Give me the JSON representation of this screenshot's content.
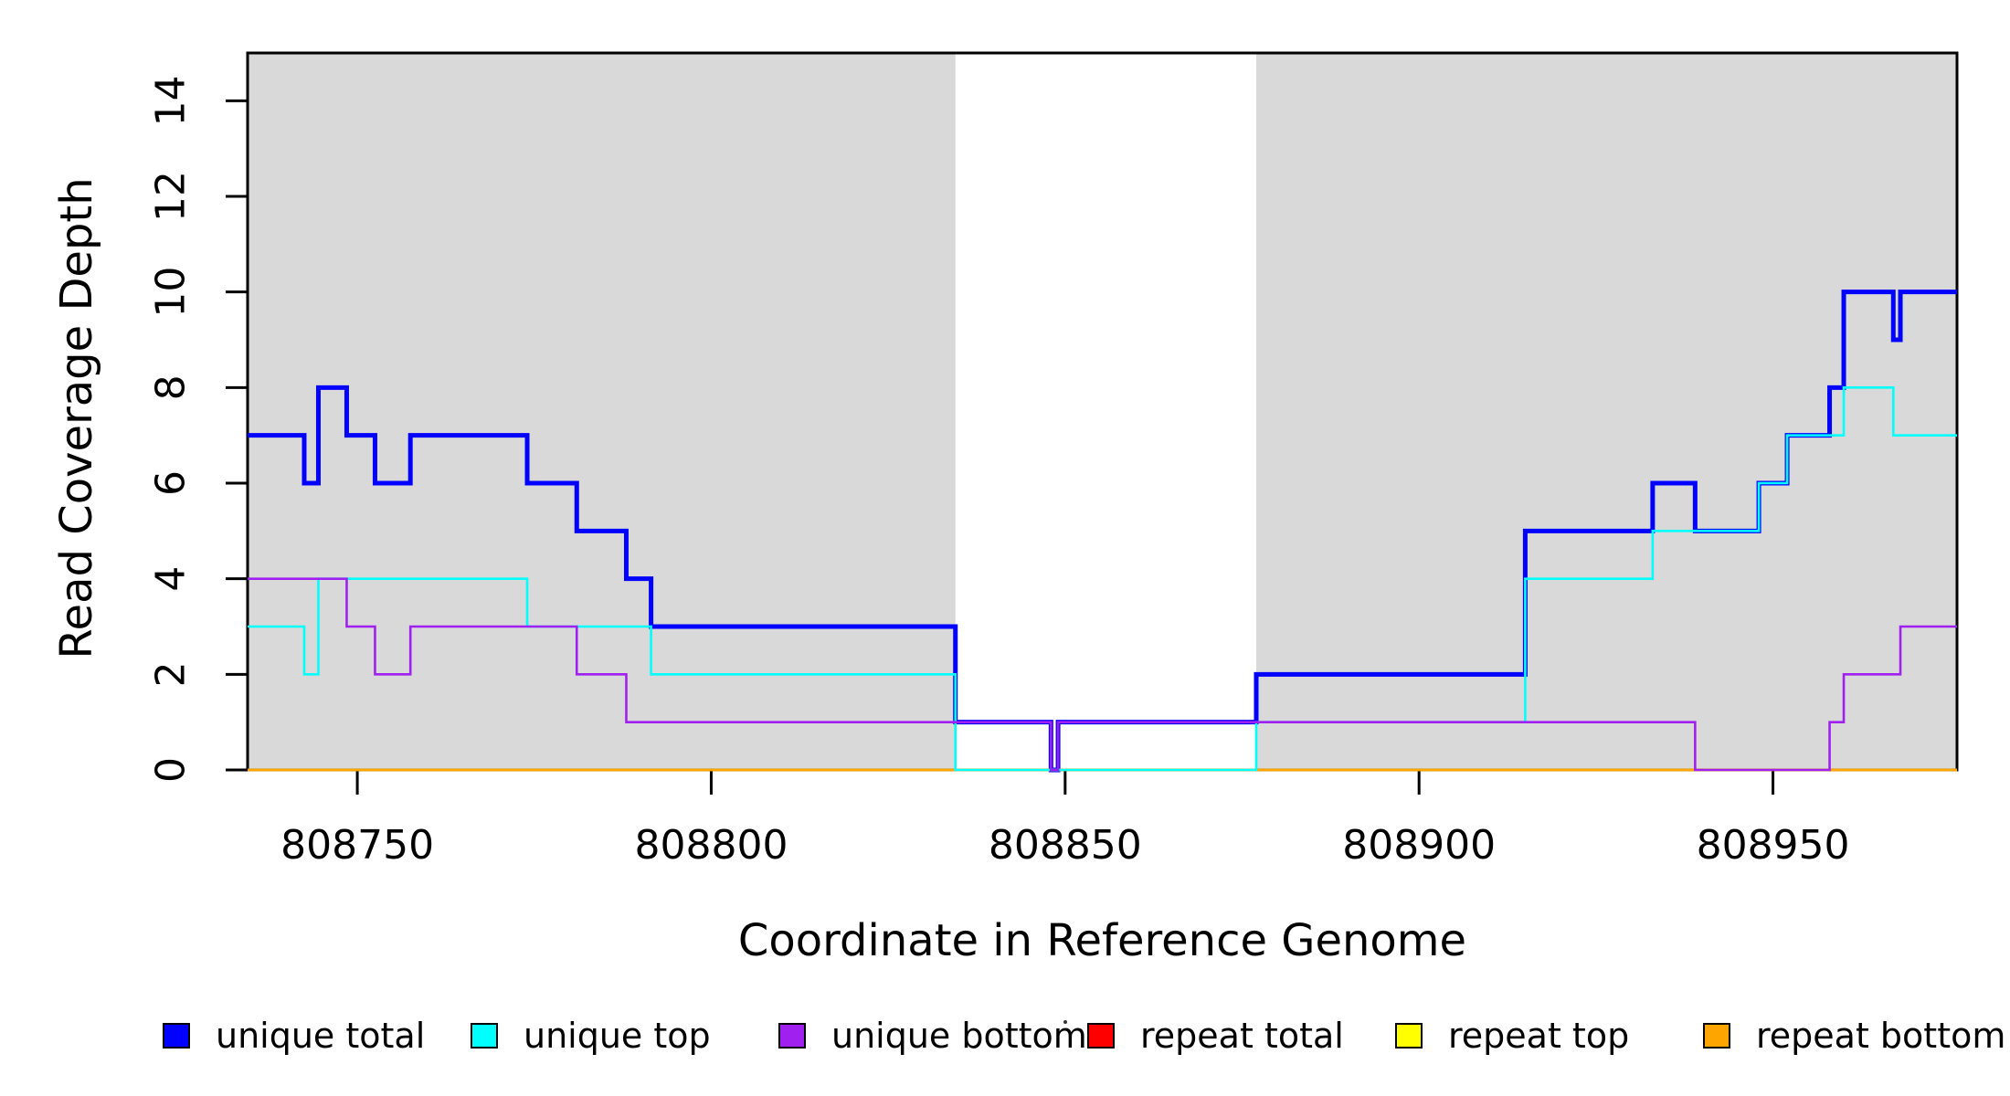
{
  "figure": {
    "background": "#ffffff",
    "shade_color": "#d9d9d9",
    "box_color": "#000000",
    "xlabel": "Coordinate in Reference Genome",
    "ylabel": "Read Coverage Depth"
  },
  "chart_data": {
    "type": "line",
    "subtype": "step-coverage",
    "title": "",
    "xlabel": "Coordinate in Reference Genome",
    "ylabel": "Read Coverage Depth",
    "xlim": [
      808734.5,
      808976
    ],
    "ylim": [
      0,
      15
    ],
    "x_ticks": [
      808750,
      808800,
      808850,
      808900,
      808950
    ],
    "y_ticks": [
      0,
      2,
      4,
      6,
      8,
      10,
      12,
      14
    ],
    "grid": false,
    "legend_position": "bottom",
    "shaded_regions": [
      {
        "x0": 808734.5,
        "x1": 808834.5
      },
      {
        "x0": 808877,
        "x1": 808976
      }
    ],
    "series": [
      {
        "name": "unique total",
        "color": "#0000ff",
        "line_width": 5,
        "steps": [
          [
            808734.5,
            7
          ],
          [
            808742.5,
            6
          ],
          [
            808744.5,
            8
          ],
          [
            808748.5,
            7
          ],
          [
            808752.5,
            6
          ],
          [
            808757.5,
            7
          ],
          [
            808774,
            6
          ],
          [
            808781,
            5
          ],
          [
            808788,
            4
          ],
          [
            808791.5,
            3
          ],
          [
            808834.5,
            1
          ],
          [
            808848,
            0
          ],
          [
            808849,
            1
          ],
          [
            808877,
            2
          ],
          [
            808915,
            5
          ],
          [
            808933,
            6
          ],
          [
            808939,
            5
          ],
          [
            808948,
            6
          ],
          [
            808952,
            7
          ],
          [
            808958,
            8
          ],
          [
            808960,
            10
          ],
          [
            808967,
            9
          ],
          [
            808968,
            10
          ]
        ]
      },
      {
        "name": "unique top",
        "color": "#00ffff",
        "line_width": 2.6,
        "steps": [
          [
            808734.5,
            3
          ],
          [
            808742.5,
            2
          ],
          [
            808744.5,
            4
          ],
          [
            808774,
            3
          ],
          [
            808791.5,
            2
          ],
          [
            808834.5,
            0
          ],
          [
            808877,
            1
          ],
          [
            808915,
            4
          ],
          [
            808933,
            5
          ],
          [
            808948,
            6
          ],
          [
            808952,
            7
          ],
          [
            808960,
            8
          ],
          [
            808967,
            7
          ]
        ]
      },
      {
        "name": "unique bottom",
        "color": "#a020f0",
        "line_width": 2.6,
        "steps": [
          [
            808734.5,
            4
          ],
          [
            808748.5,
            3
          ],
          [
            808752.5,
            2
          ],
          [
            808757.5,
            3
          ],
          [
            808781,
            2
          ],
          [
            808788,
            1
          ],
          [
            808848,
            0
          ],
          [
            808849,
            1
          ],
          [
            808939,
            0
          ],
          [
            808958,
            1
          ],
          [
            808960,
            2
          ],
          [
            808968,
            3
          ]
        ]
      },
      {
        "name": "repeat total",
        "color": "#ff0000",
        "line_width": 2.6,
        "steps": [
          [
            808734.5,
            0
          ]
        ]
      },
      {
        "name": "repeat top",
        "color": "#ffff00",
        "line_width": 2.6,
        "steps": [
          [
            808734.5,
            0
          ]
        ]
      },
      {
        "name": "repeat bottom",
        "color": "#ffa500",
        "line_width": 2.6,
        "steps": [
          [
            808734.5,
            0
          ]
        ]
      }
    ],
    "draw_order": [
      0,
      3,
      4,
      5,
      1,
      2
    ],
    "legend": [
      {
        "label": "unique total",
        "color": "#0000ff"
      },
      {
        "label": "unique top",
        "color": "#00ffff"
      },
      {
        "label": "unique bottom",
        "color": "#a020f0"
      },
      {
        "label": "repeat total",
        "color": "#ff0000"
      },
      {
        "label": "repeat top",
        "color": "#ffff00"
      },
      {
        "label": "repeat bottom",
        "color": "#ffa500"
      }
    ]
  }
}
